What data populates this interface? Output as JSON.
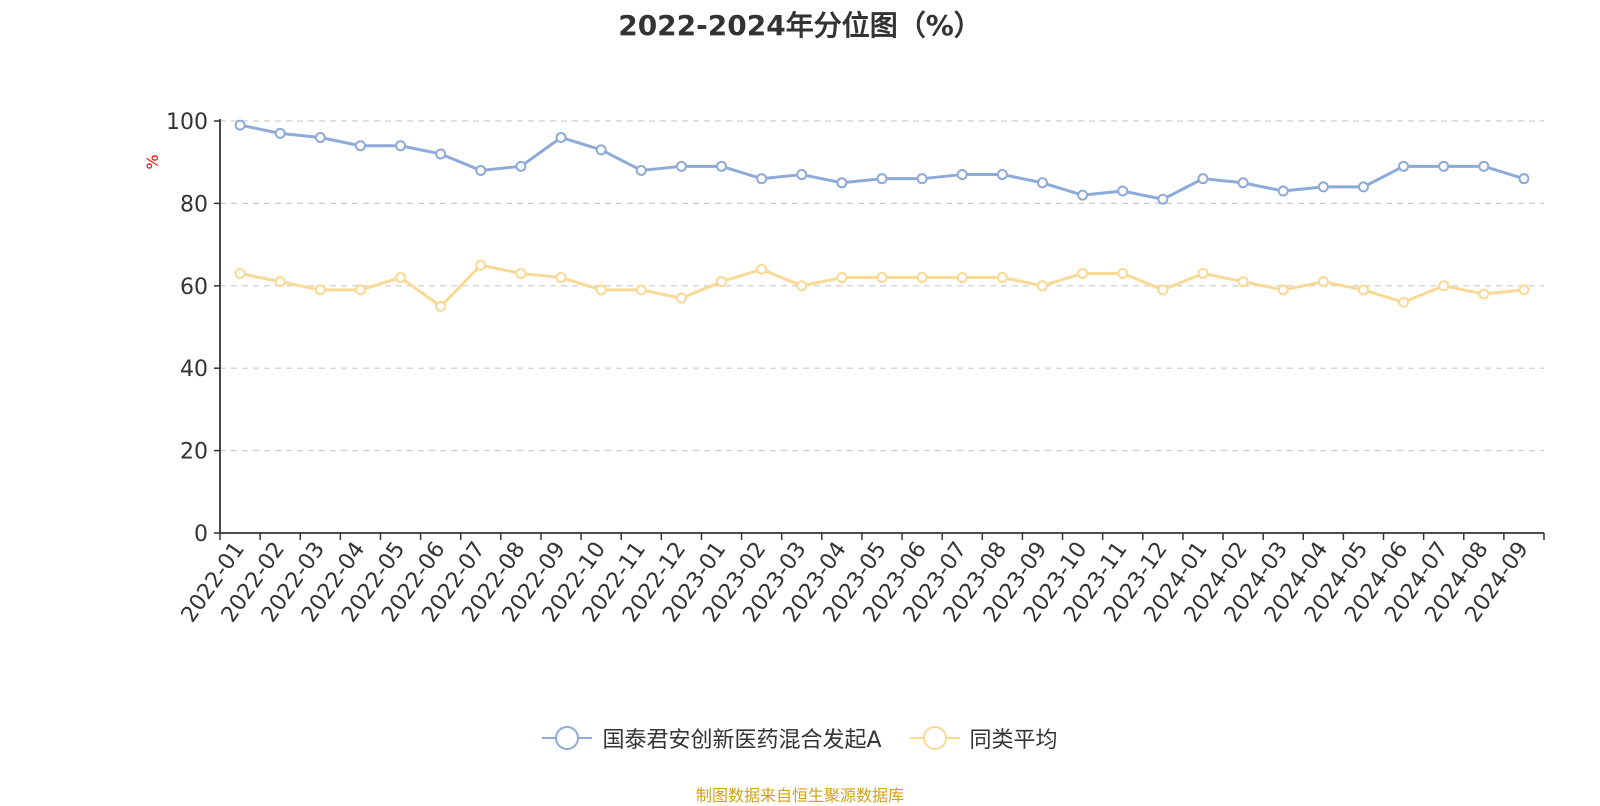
{
  "chart_data": {
    "type": "line",
    "title": "2022-2024年分位图（%）",
    "xlabel": "",
    "ylabel": "%",
    "ylim": [
      0,
      100
    ],
    "yticks": [
      0,
      20,
      40,
      60,
      80,
      100
    ],
    "grid": true,
    "legend_position": "bottom",
    "categories": [
      "2022-01",
      "2022-02",
      "2022-03",
      "2022-04",
      "2022-05",
      "2022-06",
      "2022-07",
      "2022-08",
      "2022-09",
      "2022-10",
      "2022-11",
      "2022-12",
      "2023-01",
      "2023-02",
      "2023-03",
      "2023-04",
      "2023-05",
      "2023-06",
      "2023-07",
      "2023-08",
      "2023-09",
      "2023-10",
      "2023-11",
      "2023-12",
      "2024-01",
      "2024-02",
      "2024-03",
      "2024-04",
      "2024-05",
      "2024-06",
      "2024-07",
      "2024-08",
      "2024-09"
    ],
    "series": [
      {
        "name": "国泰君安创新医药混合发起A",
        "color": "#8eaad8",
        "values": [
          99,
          97,
          96,
          94,
          94,
          92,
          88,
          89,
          96,
          93,
          88,
          89,
          89,
          86,
          87,
          85,
          86,
          86,
          87,
          87,
          85,
          82,
          83,
          81,
          86,
          85,
          83,
          84,
          84,
          89,
          89,
          89,
          86
        ]
      },
      {
        "name": "同类平均",
        "color": "#f9d995",
        "values": [
          63,
          61,
          59,
          59,
          62,
          55,
          65,
          63,
          62,
          59,
          59,
          57,
          61,
          64,
          60,
          62,
          62,
          62,
          62,
          62,
          60,
          63,
          63,
          59,
          63,
          61,
          59,
          61,
          59,
          56,
          60,
          58,
          59
        ]
      }
    ]
  },
  "footer": {
    "source": "制图数据来自恒生聚源数据库"
  }
}
